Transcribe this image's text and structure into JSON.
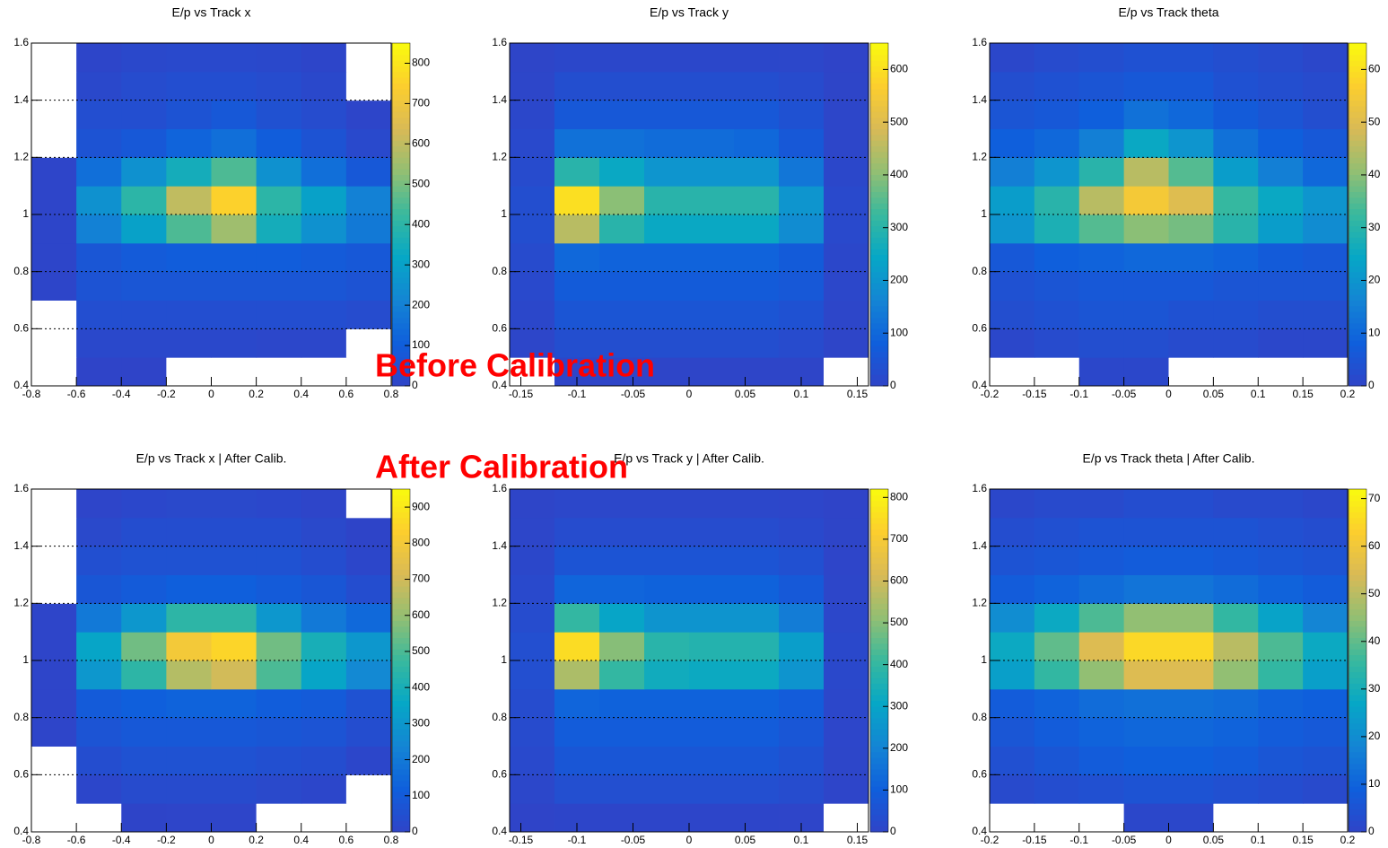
{
  "chart_data": [
    {
      "type": "heatmap",
      "title": "E/p vs Track x",
      "xbins": [
        -0.8,
        -0.6,
        -0.4,
        -0.2,
        0,
        0.2,
        0.4,
        0.6,
        0.8
      ],
      "ybins": [
        0.4,
        0.5,
        0.6,
        0.7,
        0.8,
        0.9,
        1,
        1.1,
        1.2,
        1.3,
        1.4,
        1.5,
        1.6
      ],
      "z": [
        [
          0,
          1,
          1,
          0,
          0,
          0,
          0,
          0
        ],
        [
          0,
          15,
          15,
          15,
          15,
          10,
          10,
          0
        ],
        [
          0,
          40,
          40,
          40,
          40,
          40,
          40,
          30
        ],
        [
          5,
          60,
          70,
          70,
          70,
          70,
          70,
          60
        ],
        [
          5,
          70,
          90,
          100,
          100,
          100,
          90,
          80
        ],
        [
          5,
          200,
          300,
          450,
          550,
          350,
          250,
          180
        ],
        [
          3,
          250,
          400,
          600,
          750,
          400,
          300,
          200
        ],
        [
          3,
          150,
          250,
          350,
          450,
          250,
          150,
          80
        ],
        [
          0,
          60,
          80,
          120,
          150,
          100,
          60,
          20
        ],
        [
          0,
          40,
          40,
          60,
          80,
          50,
          30,
          5
        ],
        [
          0,
          15,
          30,
          40,
          40,
          30,
          15,
          0
        ],
        [
          0,
          5,
          15,
          20,
          20,
          15,
          5,
          0
        ]
      ],
      "zlim": [
        0,
        850
      ],
      "zticks": [
        0,
        100,
        200,
        300,
        400,
        500,
        600,
        700,
        800
      ],
      "xlim": [
        -0.8,
        0.8
      ],
      "xticks": [
        -0.8,
        -0.6,
        -0.4,
        -0.2,
        0,
        0.2,
        0.4,
        0.6,
        0.8
      ],
      "ylim": [
        0.4,
        1.6
      ],
      "yticks": [
        0.4,
        0.6,
        0.8,
        1,
        1.2,
        1.4,
        1.6
      ],
      "grid": true
    },
    {
      "type": "heatmap",
      "title": "E/p vs Track y",
      "xbins": [
        -0.16,
        -0.12,
        -0.08,
        -0.04,
        0,
        0.04,
        0.08,
        0.12,
        0.16
      ],
      "ybins": [
        0.4,
        0.5,
        0.6,
        0.7,
        0.8,
        0.9,
        1,
        1.1,
        1.2,
        1.3,
        1.4,
        1.5,
        1.6
      ],
      "z": [
        [
          0,
          2,
          2,
          2,
          2,
          2,
          2,
          0
        ],
        [
          5,
          30,
          30,
          30,
          30,
          30,
          20,
          2
        ],
        [
          10,
          50,
          50,
          50,
          50,
          50,
          40,
          5
        ],
        [
          15,
          70,
          70,
          70,
          70,
          70,
          60,
          8
        ],
        [
          20,
          100,
          90,
          90,
          90,
          90,
          70,
          10
        ],
        [
          30,
          450,
          300,
          250,
          250,
          250,
          180,
          15
        ],
        [
          30,
          600,
          400,
          300,
          300,
          300,
          200,
          15
        ],
        [
          20,
          300,
          250,
          200,
          200,
          200,
          130,
          10
        ],
        [
          15,
          120,
          120,
          110,
          110,
          100,
          60,
          5
        ],
        [
          10,
          60,
          60,
          60,
          60,
          60,
          40,
          5
        ],
        [
          5,
          30,
          30,
          30,
          30,
          30,
          20,
          2
        ],
        [
          2,
          10,
          10,
          10,
          10,
          10,
          8,
          1
        ]
      ],
      "zlim": [
        0,
        650
      ],
      "zticks": [
        0,
        100,
        200,
        300,
        400,
        500,
        600
      ],
      "xlim": [
        -0.16,
        0.16
      ],
      "xticks": [
        -0.15,
        -0.1,
        -0.05,
        0,
        0.05,
        0.1,
        0.15
      ],
      "ylim": [
        0.4,
        1.6
      ],
      "yticks": [
        0.4,
        0.6,
        0.8,
        1,
        1.2,
        1.4,
        1.6
      ],
      "grid": true
    },
    {
      "type": "heatmap",
      "title": "E/p vs Track theta",
      "xbins": [
        -0.2,
        -0.15,
        -0.1,
        -0.05,
        0,
        0.05,
        0.1,
        0.15,
        0.2
      ],
      "ybins": [
        0.4,
        0.5,
        0.6,
        0.7,
        0.8,
        0.9,
        1,
        1.1,
        1.2,
        1.3,
        1.4,
        1.5,
        1.6
      ],
      "z": [
        [
          0,
          0,
          1,
          1,
          0,
          0,
          0,
          0
        ],
        [
          1,
          2,
          3,
          3,
          2,
          2,
          1,
          1
        ],
        [
          3,
          4,
          5,
          5,
          4,
          4,
          3,
          3
        ],
        [
          4,
          5,
          6,
          6,
          6,
          5,
          5,
          5
        ],
        [
          6,
          8,
          9,
          10,
          10,
          9,
          7,
          6
        ],
        [
          20,
          28,
          35,
          40,
          38,
          30,
          22,
          18
        ],
        [
          22,
          30,
          45,
          55,
          50,
          32,
          25,
          20
        ],
        [
          15,
          20,
          30,
          45,
          35,
          22,
          15,
          10
        ],
        [
          8,
          10,
          15,
          25,
          20,
          12,
          8,
          6
        ],
        [
          5,
          6,
          8,
          12,
          10,
          7,
          5,
          3
        ],
        [
          3,
          4,
          5,
          6,
          6,
          4,
          3,
          2
        ],
        [
          1,
          2,
          3,
          4,
          4,
          3,
          2,
          1
        ]
      ],
      "zlim": [
        0,
        65
      ],
      "zticks": [
        0,
        10,
        20,
        30,
        40,
        50,
        60
      ],
      "xlim": [
        -0.2,
        0.2
      ],
      "xticks": [
        -0.2,
        -0.15,
        -0.1,
        -0.05,
        0,
        0.05,
        0.1,
        0.15,
        0.2
      ],
      "ylim": [
        0.4,
        1.6
      ],
      "yticks": [
        0.4,
        0.6,
        0.8,
        1,
        1.2,
        1.4,
        1.6
      ],
      "grid": true
    },
    {
      "type": "heatmap",
      "title": "E/p vs Track x | After Calib.",
      "xbins": [
        -0.8,
        -0.6,
        -0.4,
        -0.2,
        0,
        0.2,
        0.4,
        0.6,
        0.8
      ],
      "ybins": [
        0.4,
        0.5,
        0.6,
        0.7,
        0.8,
        0.9,
        1,
        1.1,
        1.2,
        1.3,
        1.4,
        1.5,
        1.6
      ],
      "z": [
        [
          0,
          0,
          2,
          5,
          5,
          0,
          0,
          0
        ],
        [
          0,
          10,
          30,
          30,
          30,
          20,
          10,
          0
        ],
        [
          0,
          40,
          60,
          60,
          60,
          50,
          40,
          10
        ],
        [
          5,
          70,
          90,
          90,
          90,
          80,
          70,
          40
        ],
        [
          5,
          100,
          120,
          130,
          130,
          110,
          100,
          60
        ],
        [
          5,
          300,
          450,
          650,
          700,
          500,
          350,
          250
        ],
        [
          5,
          350,
          550,
          800,
          850,
          550,
          400,
          300
        ],
        [
          3,
          200,
          300,
          450,
          450,
          300,
          200,
          150
        ],
        [
          0,
          80,
          100,
          120,
          120,
          100,
          80,
          40
        ],
        [
          0,
          50,
          60,
          60,
          60,
          60,
          40,
          10
        ],
        [
          0,
          20,
          40,
          40,
          40,
          40,
          20,
          2
        ],
        [
          0,
          5,
          15,
          20,
          20,
          15,
          5,
          0
        ]
      ],
      "zlim": [
        0,
        950
      ],
      "zticks": [
        0,
        100,
        200,
        300,
        400,
        500,
        600,
        700,
        800,
        900
      ],
      "xlim": [
        -0.8,
        0.8
      ],
      "xticks": [
        -0.8,
        -0.6,
        -0.4,
        -0.2,
        0,
        0.2,
        0.4,
        0.6,
        0.8
      ],
      "ylim": [
        0.4,
        1.6
      ],
      "yticks": [
        0.4,
        0.6,
        0.8,
        1,
        1.2,
        1.4,
        1.6
      ],
      "grid": true
    },
    {
      "type": "heatmap",
      "title": "E/p vs Track y | After Calib.",
      "xbins": [
        -0.16,
        -0.12,
        -0.08,
        -0.04,
        0,
        0.04,
        0.08,
        0.12,
        0.16
      ],
      "ybins": [
        0.4,
        0.5,
        0.6,
        0.7,
        0.8,
        0.9,
        1,
        1.1,
        1.2,
        1.3,
        1.4,
        1.5,
        1.6
      ],
      "z": [
        [
          1,
          5,
          5,
          5,
          5,
          5,
          3,
          0
        ],
        [
          10,
          40,
          40,
          40,
          40,
          40,
          30,
          3
        ],
        [
          20,
          70,
          70,
          70,
          70,
          70,
          50,
          6
        ],
        [
          25,
          90,
          90,
          90,
          90,
          90,
          70,
          8
        ],
        [
          30,
          120,
          110,
          110,
          110,
          110,
          90,
          10
        ],
        [
          40,
          550,
          400,
          330,
          320,
          320,
          250,
          15
        ],
        [
          40,
          750,
          500,
          380,
          370,
          370,
          280,
          15
        ],
        [
          30,
          400,
          300,
          250,
          250,
          250,
          180,
          10
        ],
        [
          20,
          120,
          120,
          110,
          110,
          110,
          80,
          6
        ],
        [
          12,
          60,
          60,
          60,
          60,
          60,
          45,
          4
        ],
        [
          6,
          30,
          30,
          30,
          30,
          30,
          20,
          2
        ],
        [
          2,
          10,
          10,
          10,
          10,
          10,
          8,
          1
        ]
      ],
      "zlim": [
        0,
        820
      ],
      "zticks": [
        0,
        100,
        200,
        300,
        400,
        500,
        600,
        700,
        800
      ],
      "xlim": [
        -0.16,
        0.16
      ],
      "xticks": [
        -0.15,
        -0.1,
        -0.05,
        0,
        0.05,
        0.1,
        0.15
      ],
      "ylim": [
        0.4,
        1.6
      ],
      "yticks": [
        0.4,
        0.6,
        0.8,
        1,
        1.2,
        1.4,
        1.6
      ],
      "grid": true
    },
    {
      "type": "heatmap",
      "title": "E/p vs Track theta | After Calib.",
      "xbins": [
        -0.2,
        -0.15,
        -0.1,
        -0.05,
        0,
        0.05,
        0.1,
        0.15,
        0.2
      ],
      "ybins": [
        0.4,
        0.5,
        0.6,
        0.7,
        0.8,
        0.9,
        1,
        1.1,
        1.2,
        1.3,
        1.4,
        1.5,
        1.6
      ],
      "z": [
        [
          0,
          0,
          0,
          1,
          1,
          0,
          0,
          0
        ],
        [
          2,
          3,
          4,
          5,
          5,
          4,
          3,
          2
        ],
        [
          4,
          6,
          8,
          9,
          9,
          8,
          6,
          5
        ],
        [
          6,
          8,
          10,
          11,
          11,
          10,
          8,
          7
        ],
        [
          8,
          10,
          12,
          13,
          13,
          12,
          10,
          9
        ],
        [
          25,
          35,
          45,
          55,
          55,
          45,
          35,
          25
        ],
        [
          28,
          40,
          55,
          65,
          65,
          50,
          38,
          28
        ],
        [
          20,
          28,
          38,
          45,
          45,
          35,
          26,
          18
        ],
        [
          8,
          10,
          12,
          14,
          14,
          12,
          10,
          8
        ],
        [
          5,
          6,
          7,
          8,
          8,
          7,
          6,
          5
        ],
        [
          3,
          4,
          5,
          5,
          5,
          5,
          4,
          3
        ],
        [
          1,
          2,
          2,
          3,
          3,
          2,
          2,
          1
        ]
      ],
      "zlim": [
        0,
        72
      ],
      "zticks": [
        0,
        10,
        20,
        30,
        40,
        50,
        60,
        70
      ],
      "xlim": [
        -0.2,
        0.2
      ],
      "xticks": [
        -0.2,
        -0.15,
        -0.1,
        -0.05,
        0,
        0.05,
        0.1,
        0.15,
        0.2
      ],
      "ylim": [
        0.4,
        1.6
      ],
      "yticks": [
        0.4,
        0.6,
        0.8,
        1,
        1.2,
        1.4,
        1.6
      ],
      "grid": true
    }
  ],
  "annotations": [
    "Before Calibration",
    "After Calibration"
  ]
}
